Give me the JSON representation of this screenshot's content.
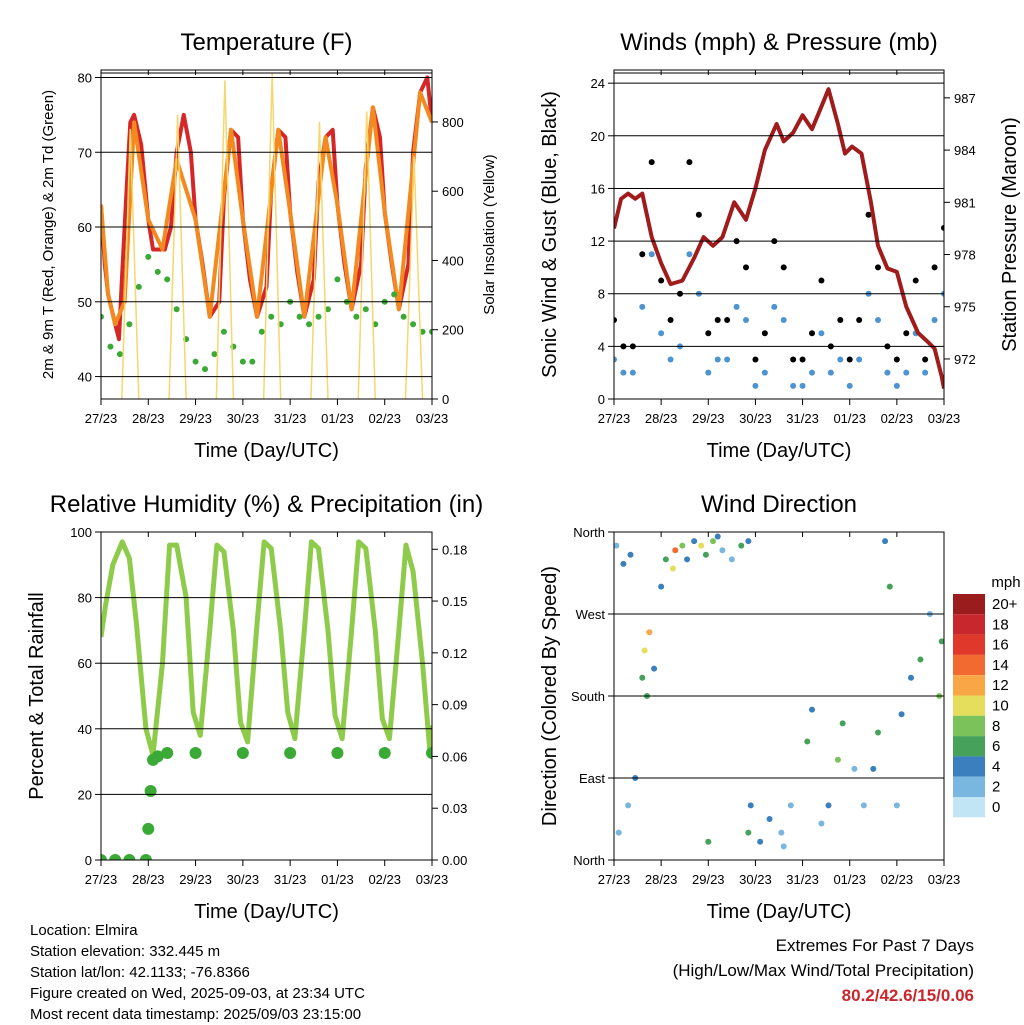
{
  "chart_data": [
    {
      "type": "line",
      "title": "Temperature (F)",
      "xlabel": "Time (Day/UTC)",
      "ylabel": "2m & 9m T (Red, Orange) & 2m Td (Green)",
      "y2label": "Solar Insolation (Yellow)",
      "x_ticks": [
        "27/23",
        "28/23",
        "29/23",
        "30/23",
        "31/23",
        "01/23",
        "02/23",
        "03/23"
      ],
      "ylim": [
        37,
        81
      ],
      "y_ticks": [
        40,
        50,
        60,
        70,
        80
      ],
      "y2lim": [
        0,
        950
      ],
      "y2_ticks": [
        0,
        200,
        400,
        600,
        800
      ],
      "grid": "horizontal",
      "series": [
        {
          "name": "2m T",
          "color": "#d62728",
          "style": "line",
          "x": [
            0,
            0.08,
            0.15,
            0.3,
            0.38,
            0.45,
            0.55,
            0.62,
            0.7,
            0.85,
            1.0,
            1.1,
            1.2,
            1.35,
            1.48,
            1.6,
            1.75,
            1.9,
            2.0,
            2.15,
            2.3,
            2.5,
            2.6,
            2.75,
            2.9,
            3.0,
            3.15,
            3.3,
            3.5,
            3.6,
            3.75,
            3.9,
            4.0,
            4.15,
            4.3,
            4.5,
            4.6,
            4.75,
            4.9,
            5.0,
            5.15,
            5.3,
            5.5,
            5.6,
            5.75,
            5.9,
            6.0,
            6.15,
            6.3,
            6.5,
            6.6,
            6.75,
            6.9,
            7.0
          ],
          "y": [
            63,
            55,
            51,
            47,
            45,
            54,
            66,
            74,
            75,
            71,
            61,
            57,
            57,
            57,
            60,
            70,
            75,
            70,
            61,
            55,
            48,
            50,
            64,
            73,
            72,
            61,
            53,
            48,
            52,
            65,
            73,
            72,
            62,
            54,
            48,
            53,
            66,
            72,
            73,
            63,
            55,
            49,
            55,
            68,
            76,
            72,
            62,
            55,
            49,
            55,
            70,
            78,
            80,
            74
          ]
        },
        {
          "name": "9m T",
          "color": "#f28a1f",
          "style": "line",
          "x": [
            0,
            0.15,
            0.3,
            0.5,
            0.7,
            1.0,
            1.3,
            1.6,
            2.0,
            2.3,
            2.75,
            3.0,
            3.3,
            3.75,
            4.0,
            4.3,
            4.75,
            5.0,
            5.3,
            5.75,
            6.0,
            6.3,
            6.75,
            7.0
          ],
          "y": [
            63,
            51,
            47,
            50,
            74,
            61,
            57,
            69,
            61,
            48,
            73,
            61,
            48,
            73,
            62,
            48,
            72,
            63,
            49,
            76,
            62,
            49,
            78,
            74
          ]
        },
        {
          "name": "2m Td",
          "color": "#3aa935",
          "style": "dots",
          "x": [
            0,
            0.2,
            0.4,
            0.6,
            0.8,
            1.0,
            1.2,
            1.4,
            1.6,
            1.8,
            2.0,
            2.2,
            2.4,
            2.6,
            2.8,
            3.0,
            3.2,
            3.4,
            3.6,
            3.8,
            4.0,
            4.2,
            4.4,
            4.6,
            4.8,
            5.0,
            5.2,
            5.4,
            5.6,
            5.8,
            6.0,
            6.2,
            6.4,
            6.6,
            6.8,
            7.0
          ],
          "y": [
            48,
            44,
            43,
            47,
            52,
            56,
            54,
            53,
            49,
            45,
            42,
            41,
            43,
            46,
            44,
            42,
            42,
            46,
            48,
            47,
            50,
            48,
            47,
            48,
            49,
            53,
            50,
            48,
            49,
            47,
            50,
            51,
            48,
            47,
            46,
            46
          ]
        },
        {
          "name": "Solar Insolation",
          "color": "#f5d76e",
          "style": "spikes",
          "axis": "y2",
          "x": [
            0.62,
            1.62,
            2.62,
            3.62,
            4.62,
            5.62,
            6.62
          ],
          "y": [
            780,
            820,
            920,
            940,
            800,
            830,
            700
          ]
        }
      ]
    },
    {
      "type": "scatter",
      "title": "Winds (mph) & Pressure (mb)",
      "xlabel": "Time (Day/UTC)",
      "ylabel": "Sonic Wind & Gust (Blue, Black)",
      "y2label": "Station Pressure (Maroon)",
      "x_ticks": [
        "27/23",
        "28/23",
        "29/23",
        "30/23",
        "31/23",
        "01/23",
        "02/23",
        "03/23"
      ],
      "ylim": [
        0,
        25
      ],
      "y_ticks": [
        0,
        4,
        8,
        12,
        16,
        20,
        24
      ],
      "y2lim": [
        969.7,
        988.6
      ],
      "y2_ticks": [
        972,
        975,
        978,
        981,
        984,
        987
      ],
      "grid": "horizontal",
      "series": [
        {
          "name": "Gust",
          "color": "#000000",
          "style": "dots",
          "x": [
            0,
            0.2,
            0.4,
            0.6,
            0.8,
            1.0,
            1.2,
            1.4,
            1.6,
            1.8,
            2.0,
            2.2,
            2.4,
            2.6,
            2.8,
            3.0,
            3.2,
            3.4,
            3.6,
            3.8,
            4.0,
            4.2,
            4.4,
            4.6,
            4.8,
            5.0,
            5.2,
            5.4,
            5.6,
            5.8,
            6.0,
            6.2,
            6.4,
            6.6,
            6.8,
            7.0
          ],
          "y": [
            6,
            4,
            4,
            11,
            18,
            9,
            6,
            8,
            18,
            14,
            5,
            6,
            6,
            12,
            10,
            3,
            5,
            12,
            10,
            3,
            3,
            5,
            9,
            4,
            6,
            3,
            6,
            14,
            10,
            4,
            3,
            5,
            9,
            3,
            10,
            13
          ]
        },
        {
          "name": "Sonic Wind",
          "color": "#4e94d0",
          "style": "dots",
          "x": [
            0,
            0.2,
            0.4,
            0.6,
            0.8,
            1.0,
            1.2,
            1.4,
            1.6,
            1.8,
            2.0,
            2.2,
            2.4,
            2.6,
            2.8,
            3.0,
            3.2,
            3.4,
            3.6,
            3.8,
            4.0,
            4.2,
            4.4,
            4.6,
            4.8,
            5.0,
            5.2,
            5.4,
            5.6,
            5.8,
            6.0,
            6.2,
            6.4,
            6.6,
            6.8,
            7.0
          ],
          "y": [
            3,
            2,
            2,
            7,
            11,
            5,
            3,
            4,
            11,
            8,
            2,
            3,
            3,
            7,
            6,
            1,
            2,
            7,
            6,
            1,
            1,
            2,
            5,
            2,
            3,
            1,
            3,
            8,
            6,
            2,
            1,
            2,
            5,
            2,
            6,
            8
          ]
        },
        {
          "name": "Station Pressure",
          "color": "#a01c1c",
          "style": "line",
          "axis": "y2",
          "x": [
            0,
            0.15,
            0.3,
            0.45,
            0.6,
            0.8,
            1.0,
            1.2,
            1.45,
            1.7,
            1.9,
            2.1,
            2.3,
            2.55,
            2.8,
            3.0,
            3.2,
            3.45,
            3.6,
            3.8,
            4.0,
            4.2,
            4.4,
            4.55,
            4.75,
            4.9,
            5.05,
            5.25,
            5.45,
            5.6,
            5.8,
            6.0,
            6.2,
            6.45,
            6.65,
            6.8,
            6.95,
            7.0
          ],
          "y": [
            979.5,
            981.2,
            981.5,
            981.2,
            981.5,
            979,
            977.5,
            976.3,
            976.5,
            977.8,
            979,
            978.5,
            979,
            981,
            980,
            981.8,
            984,
            985.5,
            984.5,
            985,
            986,
            985.2,
            986.5,
            987.5,
            985.5,
            983.8,
            984.2,
            983.8,
            981,
            978.5,
            977.2,
            977,
            975,
            973.5,
            973,
            972.6,
            971,
            970.3
          ]
        }
      ]
    },
    {
      "type": "line",
      "title": "Relative Humidity (%) & Precipitation (in)",
      "xlabel": "Time (Day/UTC)",
      "ylabel": "Percent & Total Rainfall",
      "x_ticks": [
        "27/23",
        "28/23",
        "29/23",
        "30/23",
        "31/23",
        "01/23",
        "02/23",
        "03/23"
      ],
      "ylim": [
        0,
        100
      ],
      "y_ticks": [
        0,
        20,
        40,
        60,
        80,
        100
      ],
      "y2lim": [
        0,
        0.19
      ],
      "y2_ticks": [
        "0.00",
        "0.03",
        "0.06",
        "0.09",
        "0.12",
        "0.15",
        "0.18"
      ],
      "grid": "horizontal",
      "series": [
        {
          "name": "RH",
          "color": "#8fcb4b",
          "style": "line",
          "x": [
            0,
            0.1,
            0.25,
            0.45,
            0.6,
            0.75,
            0.95,
            1.1,
            1.3,
            1.45,
            1.6,
            1.8,
            1.95,
            2.1,
            2.3,
            2.45,
            2.6,
            2.8,
            2.95,
            3.1,
            3.3,
            3.45,
            3.6,
            3.8,
            3.95,
            4.1,
            4.3,
            4.45,
            4.6,
            4.8,
            4.95,
            5.1,
            5.3,
            5.45,
            5.6,
            5.8,
            5.95,
            6.1,
            6.3,
            6.45,
            6.6,
            6.8,
            6.95,
            7.0
          ],
          "y": [
            68,
            78,
            90,
            97,
            92,
            72,
            40,
            32,
            60,
            96,
            96,
            80,
            45,
            38,
            70,
            96,
            94,
            70,
            42,
            36,
            72,
            97,
            95,
            70,
            45,
            37,
            70,
            97,
            95,
            70,
            44,
            37,
            70,
            97,
            95,
            70,
            43,
            37,
            70,
            96,
            88,
            60,
            34,
            41
          ]
        },
        {
          "name": "Total Rainfall",
          "color": "#3aa935",
          "style": "dots",
          "axis": "y2",
          "x": [
            0,
            0.3,
            0.6,
            0.95,
            1.0,
            1.05,
            1.1,
            1.2,
            1.4,
            2.0,
            3.0,
            4.0,
            5.0,
            6.0,
            7.0
          ],
          "y": [
            0,
            0,
            0,
            0,
            0.018,
            0.04,
            0.058,
            0.06,
            0.062,
            0.062,
            0.062,
            0.062,
            0.062,
            0.062,
            0.062
          ]
        }
      ]
    },
    {
      "type": "scatter",
      "title": "Wind Direction",
      "xlabel": "Time (Day/UTC)",
      "ylabel": "Direction (Colored By Speed)",
      "x_ticks": [
        "27/23",
        "28/23",
        "29/23",
        "30/23",
        "31/23",
        "01/23",
        "02/23",
        "03/23"
      ],
      "ylim": [
        0,
        360
      ],
      "y_ticks": [
        "North",
        "East",
        "South",
        "West",
        "North"
      ],
      "grid": "horizontal",
      "legend": {
        "title": "mph",
        "labels": [
          "20+",
          "18",
          "16",
          "14",
          "12",
          "10",
          "8",
          "6",
          "4",
          "2",
          "0"
        ],
        "colors": [
          "#9b1c1c",
          "#c8282d",
          "#e0392b",
          "#f26a2f",
          "#f9a746",
          "#e5dd5c",
          "#7cc25a",
          "#46a25a",
          "#3b7fbf",
          "#79b6e0",
          "#c2e5f6"
        ]
      },
      "points": [
        [
          0.05,
          345,
          2
        ],
        [
          0.2,
          325,
          4
        ],
        [
          0.35,
          335,
          3
        ],
        [
          0.1,
          30,
          1
        ],
        [
          0.3,
          60,
          2
        ],
        [
          0.45,
          90,
          3
        ],
        [
          0.6,
          200,
          6
        ],
        [
          0.65,
          230,
          10
        ],
        [
          0.75,
          250,
          12
        ],
        [
          0.7,
          180,
          6
        ],
        [
          0.85,
          210,
          3
        ],
        [
          1.0,
          300,
          3
        ],
        [
          1.1,
          330,
          6
        ],
        [
          1.25,
          320,
          10
        ],
        [
          1.3,
          340,
          14
        ],
        [
          1.45,
          345,
          8
        ],
        [
          1.55,
          330,
          4
        ],
        [
          1.7,
          350,
          4
        ],
        [
          1.85,
          345,
          10
        ],
        [
          1.95,
          335,
          6
        ],
        [
          2.1,
          350,
          8
        ],
        [
          2.2,
          355,
          4
        ],
        [
          2.0,
          20,
          6
        ],
        [
          2.3,
          340,
          2
        ],
        [
          2.5,
          330,
          1
        ],
        [
          2.7,
          345,
          6
        ],
        [
          2.85,
          350,
          4
        ],
        [
          2.9,
          60,
          4
        ],
        [
          2.85,
          30,
          6
        ],
        [
          3.1,
          20,
          4
        ],
        [
          3.3,
          45,
          3
        ],
        [
          3.55,
          30,
          1
        ],
        [
          3.75,
          60,
          2
        ],
        [
          3.6,
          15,
          1
        ],
        [
          4.1,
          130,
          6
        ],
        [
          4.2,
          165,
          3
        ],
        [
          4.4,
          40,
          2
        ],
        [
          4.55,
          60,
          4
        ],
        [
          4.75,
          110,
          8
        ],
        [
          4.85,
          150,
          6
        ],
        [
          5.1,
          100,
          1
        ],
        [
          5.3,
          60,
          2
        ],
        [
          5.5,
          100,
          3
        ],
        [
          5.6,
          140,
          6
        ],
        [
          5.75,
          350,
          4
        ],
        [
          5.85,
          300,
          6
        ],
        [
          6.0,
          60,
          1
        ],
        [
          6.1,
          160,
          3
        ],
        [
          6.3,
          200,
          4
        ],
        [
          6.5,
          220,
          6
        ],
        [
          6.7,
          270,
          2
        ],
        [
          6.9,
          180,
          8
        ],
        [
          6.95,
          240,
          6
        ]
      ]
    }
  ],
  "footer": {
    "location": "Location: Elmira",
    "elevation": "Station elevation: 332.445 m",
    "latlon": "Station lat/lon: 42.1133; -76.8366",
    "created": "Figure created on Wed, 2025-09-03, at 23:34 UTC",
    "recent": "Most recent data timestamp: 2025/09/03 23:15:00"
  },
  "extremes": {
    "heading": "Extremes For Past 7 Days",
    "subheading": "(High/Low/Max Wind/Total Precipitation)",
    "values": "80.2/42.6/15/0.06"
  }
}
